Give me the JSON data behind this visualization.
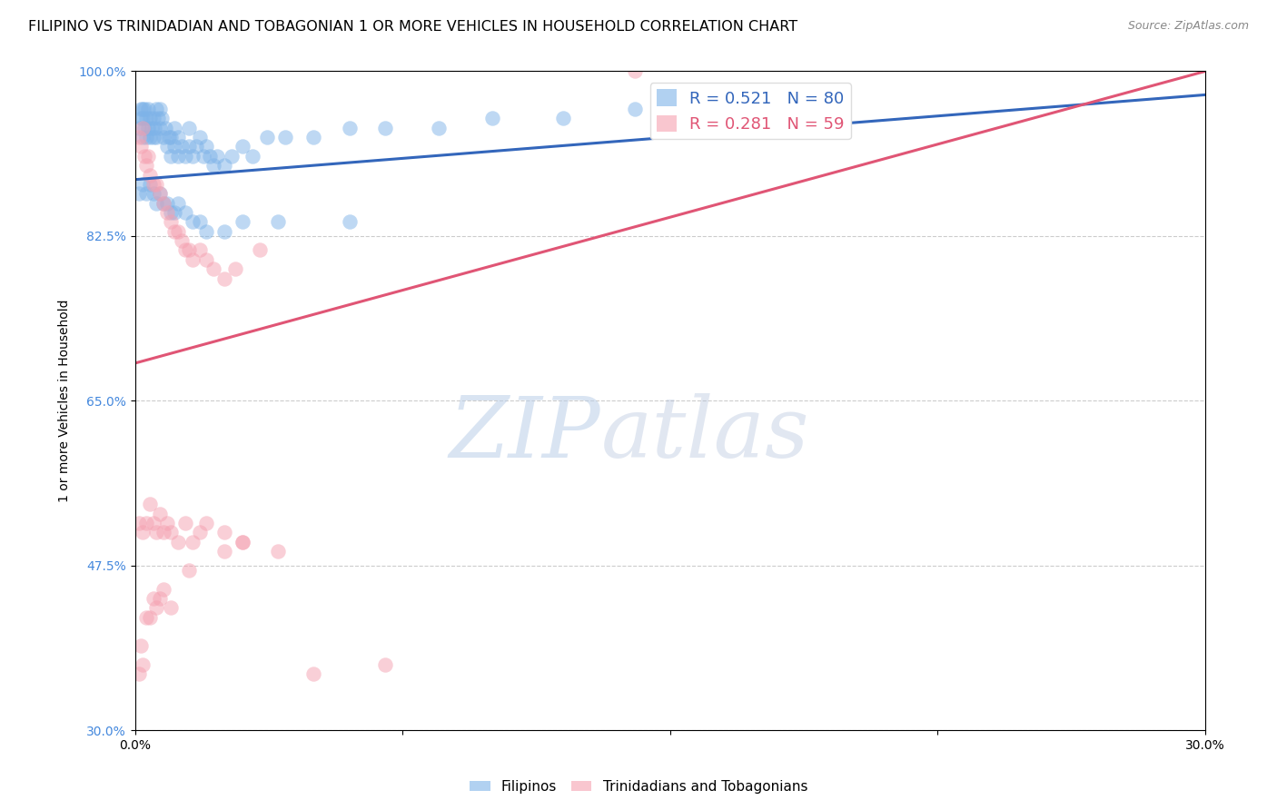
{
  "title": "FILIPINO VS TRINIDADIAN AND TOBAGONIAN 1 OR MORE VEHICLES IN HOUSEHOLD CORRELATION CHART",
  "source": "Source: ZipAtlas.com",
  "ylabel": "1 or more Vehicles in Household",
  "xlim": [
    0.0,
    30.0
  ],
  "ylim": [
    30.0,
    100.0
  ],
  "xticks": [
    0.0,
    7.5,
    15.0,
    22.5,
    30.0
  ],
  "xticklabels": [
    "0.0%",
    "",
    "",
    "",
    "30.0%"
  ],
  "yticks": [
    30.0,
    47.5,
    65.0,
    82.5,
    100.0
  ],
  "yticklabels": [
    "30.0%",
    "47.5%",
    "65.0%",
    "82.5%",
    "100.0%"
  ],
  "blue_color": "#7EB3E8",
  "pink_color": "#F5A0B0",
  "blue_line_color": "#3366BB",
  "pink_line_color": "#E05575",
  "R_blue": 0.521,
  "N_blue": 80,
  "R_pink": 0.281,
  "N_pink": 59,
  "legend_label_blue": "Filipinos",
  "legend_label_pink": "Trinidadians and Tobagonians",
  "watermark_zip": "ZIP",
  "watermark_atlas": "atlas",
  "title_fontsize": 11.5,
  "axis_label_fontsize": 10,
  "tick_fontsize": 10,
  "legend_fontsize": 13,
  "blue_scatter_x": [
    0.1,
    0.15,
    0.15,
    0.2,
    0.2,
    0.2,
    0.25,
    0.25,
    0.3,
    0.3,
    0.35,
    0.35,
    0.4,
    0.4,
    0.45,
    0.5,
    0.5,
    0.55,
    0.6,
    0.6,
    0.65,
    0.7,
    0.7,
    0.75,
    0.8,
    0.85,
    0.9,
    0.95,
    1.0,
    1.0,
    1.1,
    1.1,
    1.2,
    1.2,
    1.3,
    1.4,
    1.5,
    1.5,
    1.6,
    1.7,
    1.8,
    1.9,
    2.0,
    2.1,
    2.2,
    2.3,
    2.5,
    2.7,
    3.0,
    3.3,
    3.7,
    4.2,
    5.0,
    6.0,
    7.0,
    8.5,
    10.0,
    12.0,
    14.0,
    16.0,
    0.1,
    0.2,
    0.3,
    0.4,
    0.5,
    0.6,
    0.7,
    0.8,
    0.9,
    1.0,
    1.1,
    1.2,
    1.4,
    1.6,
    1.8,
    2.0,
    2.5,
    3.0,
    4.0,
    6.0
  ],
  "blue_scatter_y": [
    94,
    95,
    96,
    95,
    93,
    96,
    94,
    96,
    93,
    95,
    94,
    96,
    93,
    95,
    94,
    93,
    95,
    94,
    93,
    96,
    95,
    94,
    96,
    95,
    93,
    94,
    92,
    93,
    91,
    93,
    92,
    94,
    91,
    93,
    92,
    91,
    92,
    94,
    91,
    92,
    93,
    91,
    92,
    91,
    90,
    91,
    90,
    91,
    92,
    91,
    93,
    93,
    93,
    94,
    94,
    94,
    95,
    95,
    96,
    97,
    87,
    88,
    87,
    88,
    87,
    86,
    87,
    86,
    86,
    85,
    85,
    86,
    85,
    84,
    84,
    83,
    83,
    84,
    84,
    84
  ],
  "pink_scatter_x": [
    0.1,
    0.15,
    0.2,
    0.25,
    0.3,
    0.35,
    0.4,
    0.5,
    0.6,
    0.7,
    0.8,
    0.9,
    1.0,
    1.1,
    1.2,
    1.3,
    1.4,
    1.5,
    1.6,
    1.8,
    2.0,
    2.2,
    2.5,
    2.8,
    3.5,
    14.0,
    0.1,
    0.2,
    0.3,
    0.4,
    0.5,
    0.6,
    0.7,
    0.8,
    0.9,
    1.0,
    1.2,
    1.4,
    1.6,
    1.8,
    2.0,
    2.5,
    3.0,
    0.1,
    0.15,
    0.2,
    0.3,
    0.4,
    0.5,
    0.6,
    0.7,
    0.8,
    1.0,
    1.5,
    2.5,
    3.0,
    4.0,
    5.0,
    7.0
  ],
  "pink_scatter_y": [
    93,
    92,
    94,
    91,
    90,
    91,
    89,
    88,
    88,
    87,
    86,
    85,
    84,
    83,
    83,
    82,
    81,
    81,
    80,
    81,
    80,
    79,
    78,
    79,
    81,
    100,
    52,
    51,
    52,
    54,
    52,
    51,
    53,
    51,
    52,
    51,
    50,
    52,
    50,
    51,
    52,
    51,
    50,
    36,
    39,
    37,
    42,
    42,
    44,
    43,
    44,
    45,
    43,
    47,
    49,
    50,
    49,
    36,
    37
  ],
  "blue_trendline_x": [
    0.0,
    30.0
  ],
  "blue_trendline_y": [
    88.5,
    97.5
  ],
  "pink_trendline_x": [
    0.0,
    30.0
  ],
  "pink_trendline_y": [
    69.0,
    100.0
  ]
}
